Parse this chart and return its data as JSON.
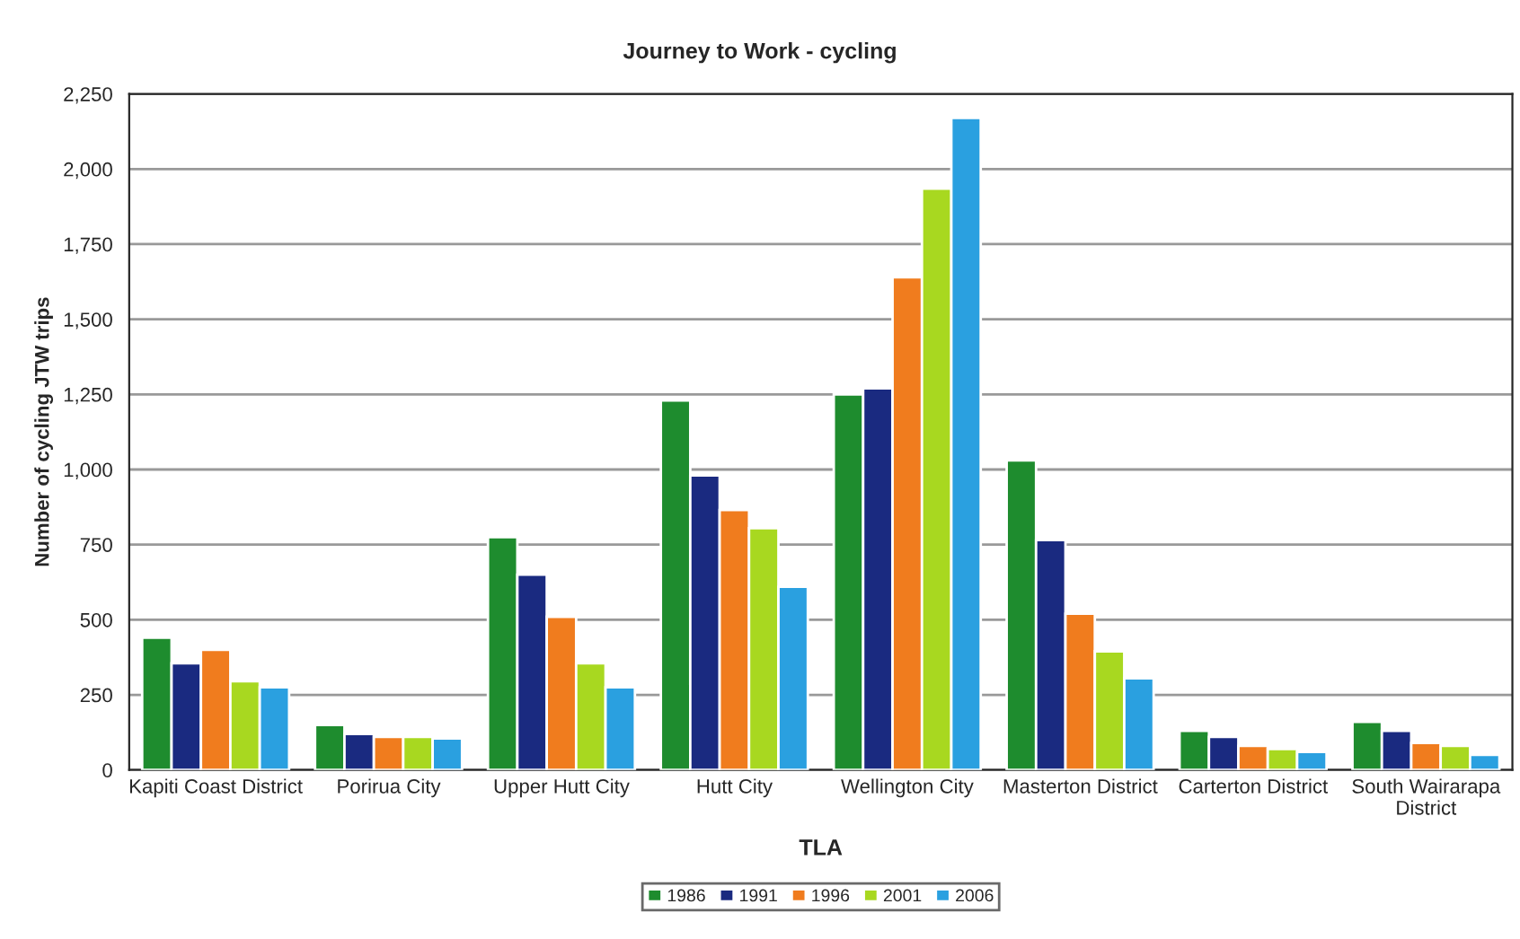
{
  "chart_data": {
    "type": "bar",
    "title": "Journey to Work - cycling",
    "xlabel": "TLA",
    "ylabel": "Number of cycling JTW trips",
    "categories": [
      "Kapiti Coast District",
      "Porirua City",
      "Upper Hutt City",
      "Hutt City",
      "Wellington City",
      "Masterton District",
      "Carterton District",
      "South Wairarapa District"
    ],
    "series": [
      {
        "name": "1986",
        "color": "#1e8c2e",
        "values": [
          440,
          150,
          775,
          1230,
          1250,
          1030,
          130,
          160
        ]
      },
      {
        "name": "1991",
        "color": "#1a2a80",
        "values": [
          355,
          120,
          650,
          980,
          1270,
          765,
          110,
          130
        ]
      },
      {
        "name": "1996",
        "color": "#f07c1e",
        "values": [
          400,
          110,
          510,
          865,
          1640,
          520,
          80,
          90
        ]
      },
      {
        "name": "2001",
        "color": "#a8d820",
        "values": [
          295,
          110,
          355,
          805,
          1935,
          395,
          70,
          80
        ]
      },
      {
        "name": "2006",
        "color": "#2aa0e0",
        "values": [
          275,
          105,
          275,
          610,
          2170,
          305,
          60,
          50
        ]
      }
    ],
    "ylim": [
      0,
      2250
    ],
    "yticks": [
      0,
      {
        "value": 250,
        "label": "250"
      },
      {
        "value": 500,
        "label": "500"
      },
      {
        "value": 750,
        "label": "750"
      },
      {
        "value": 1000,
        "label": "1,000"
      },
      {
        "value": 1250,
        "label": "1,250"
      },
      {
        "value": 1500,
        "label": "1,500"
      },
      {
        "value": 1750,
        "label": "1,750"
      },
      {
        "value": 2000,
        "label": "2,000"
      },
      {
        "value": 2250,
        "label": "2,250"
      }
    ],
    "grid": "y",
    "legend": "bottom"
  }
}
